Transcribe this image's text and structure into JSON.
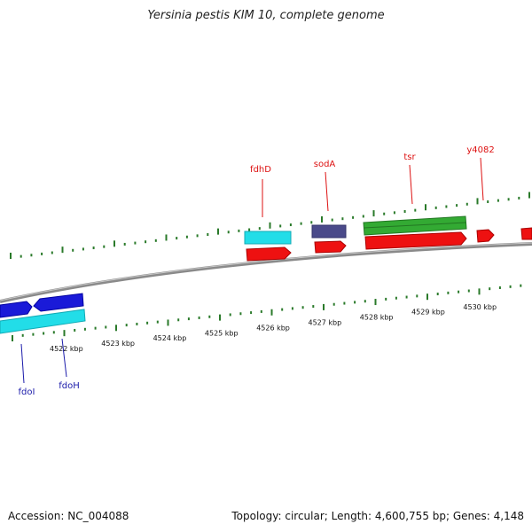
{
  "title": "Yersinia pestis KIM 10, complete genome",
  "footer": {
    "accession": "Accession: NC_004088",
    "info": "Topology: circular; Length: 4,600,755 bp; Genes: 4,148"
  },
  "scale_labels": [
    "4522 kbp",
    "4523 kbp",
    "4524 kbp",
    "4525 kbp",
    "4526 kbp",
    "4527 kbp",
    "4528 kbp",
    "4529 kbp",
    "4530 kbp"
  ],
  "gene_labels": {
    "forward": [
      "fdhD",
      "sodA",
      "tsr",
      "y4082"
    ],
    "reverse": [
      "fdoI",
      "fdoH"
    ]
  },
  "colors": {
    "forward_gene": "#ee1111",
    "reverse_gene": "#1a1ad8",
    "cds_cyan": "#22dde8",
    "rna_green": "#33aa33",
    "navy_feature": "#4a4a8a",
    "forward_label": "#dd1111",
    "reverse_label": "#1a1aaa",
    "tick": "#2a7a2a",
    "backbone": "#888888"
  }
}
